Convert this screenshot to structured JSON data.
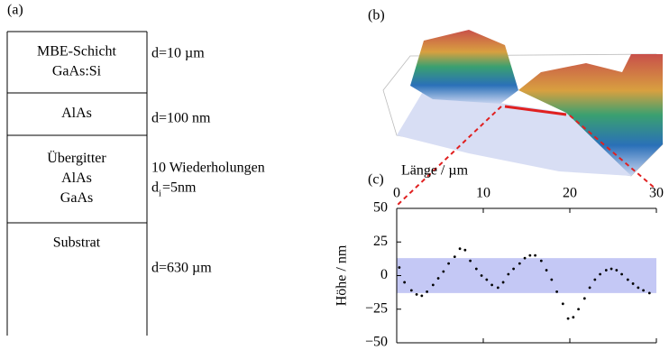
{
  "panel_a": {
    "label": "(a)",
    "layers": [
      {
        "name": [
          "MBE-Schicht",
          "GaAs:Si"
        ],
        "info": [
          "d=10 µm"
        ]
      },
      {
        "name": [
          "AlAs"
        ],
        "info": [
          "d=100 nm"
        ]
      },
      {
        "name": [
          "Übergitter",
          "AlAs",
          "GaAs"
        ],
        "info": [
          "10 Wiederholungen"
        ],
        "thickness": {
          "symbol": "d",
          "sub": "i",
          "rest": "=5nm"
        }
      },
      {
        "name": [
          "Substrat"
        ],
        "info": [
          "d=630 µm"
        ]
      }
    ]
  },
  "panel_b": {
    "label": "(b)"
  },
  "chart_data": {
    "type": "scatter",
    "label": "(c)",
    "x_label": "Länge / µm",
    "y_label": "Höhe / nm",
    "xlim": [
      0,
      30
    ],
    "xticks": [
      0,
      10,
      20,
      30
    ],
    "ylim": [
      -50,
      50
    ],
    "yticks": [
      50,
      25,
      0,
      {
        "value": -25,
        "label": "−25"
      },
      {
        "value": -50,
        "label": "−50"
      }
    ],
    "band": [
      -13,
      13
    ],
    "band_color": "#c4c8f5",
    "x": [
      0.3,
      0.9,
      1.7,
      2.3,
      2.9,
      3.5,
      4.2,
      4.8,
      5.4,
      6.0,
      6.7,
      7.3,
      7.9,
      8.5,
      9.2,
      9.8,
      10.4,
      11.0,
      11.7,
      12.3,
      12.9,
      13.5,
      14.2,
      14.8,
      15.4,
      16.0,
      16.7,
      17.3,
      17.9,
      18.5,
      19.2,
      19.8,
      20.4,
      21.0,
      21.7,
      22.3,
      22.9,
      23.5,
      24.2,
      24.8,
      25.4,
      26.0,
      26.7,
      27.3,
      27.9,
      28.5,
      29.2
    ],
    "series": [
      {
        "color": "#000000",
        "values": [
          6,
          -5,
          -11,
          -14,
          -15,
          -12,
          -7,
          -2,
          3,
          9,
          14,
          20,
          19,
          11,
          5,
          0,
          -3,
          -7,
          -9,
          -5,
          1,
          5,
          9,
          13,
          15,
          15,
          11,
          4,
          -3,
          -12,
          -21,
          -32,
          -31,
          -25,
          -17,
          -9,
          -3,
          1,
          4,
          5,
          4,
          1,
          -3,
          -6,
          -9,
          -11,
          -13
        ]
      }
    ]
  }
}
